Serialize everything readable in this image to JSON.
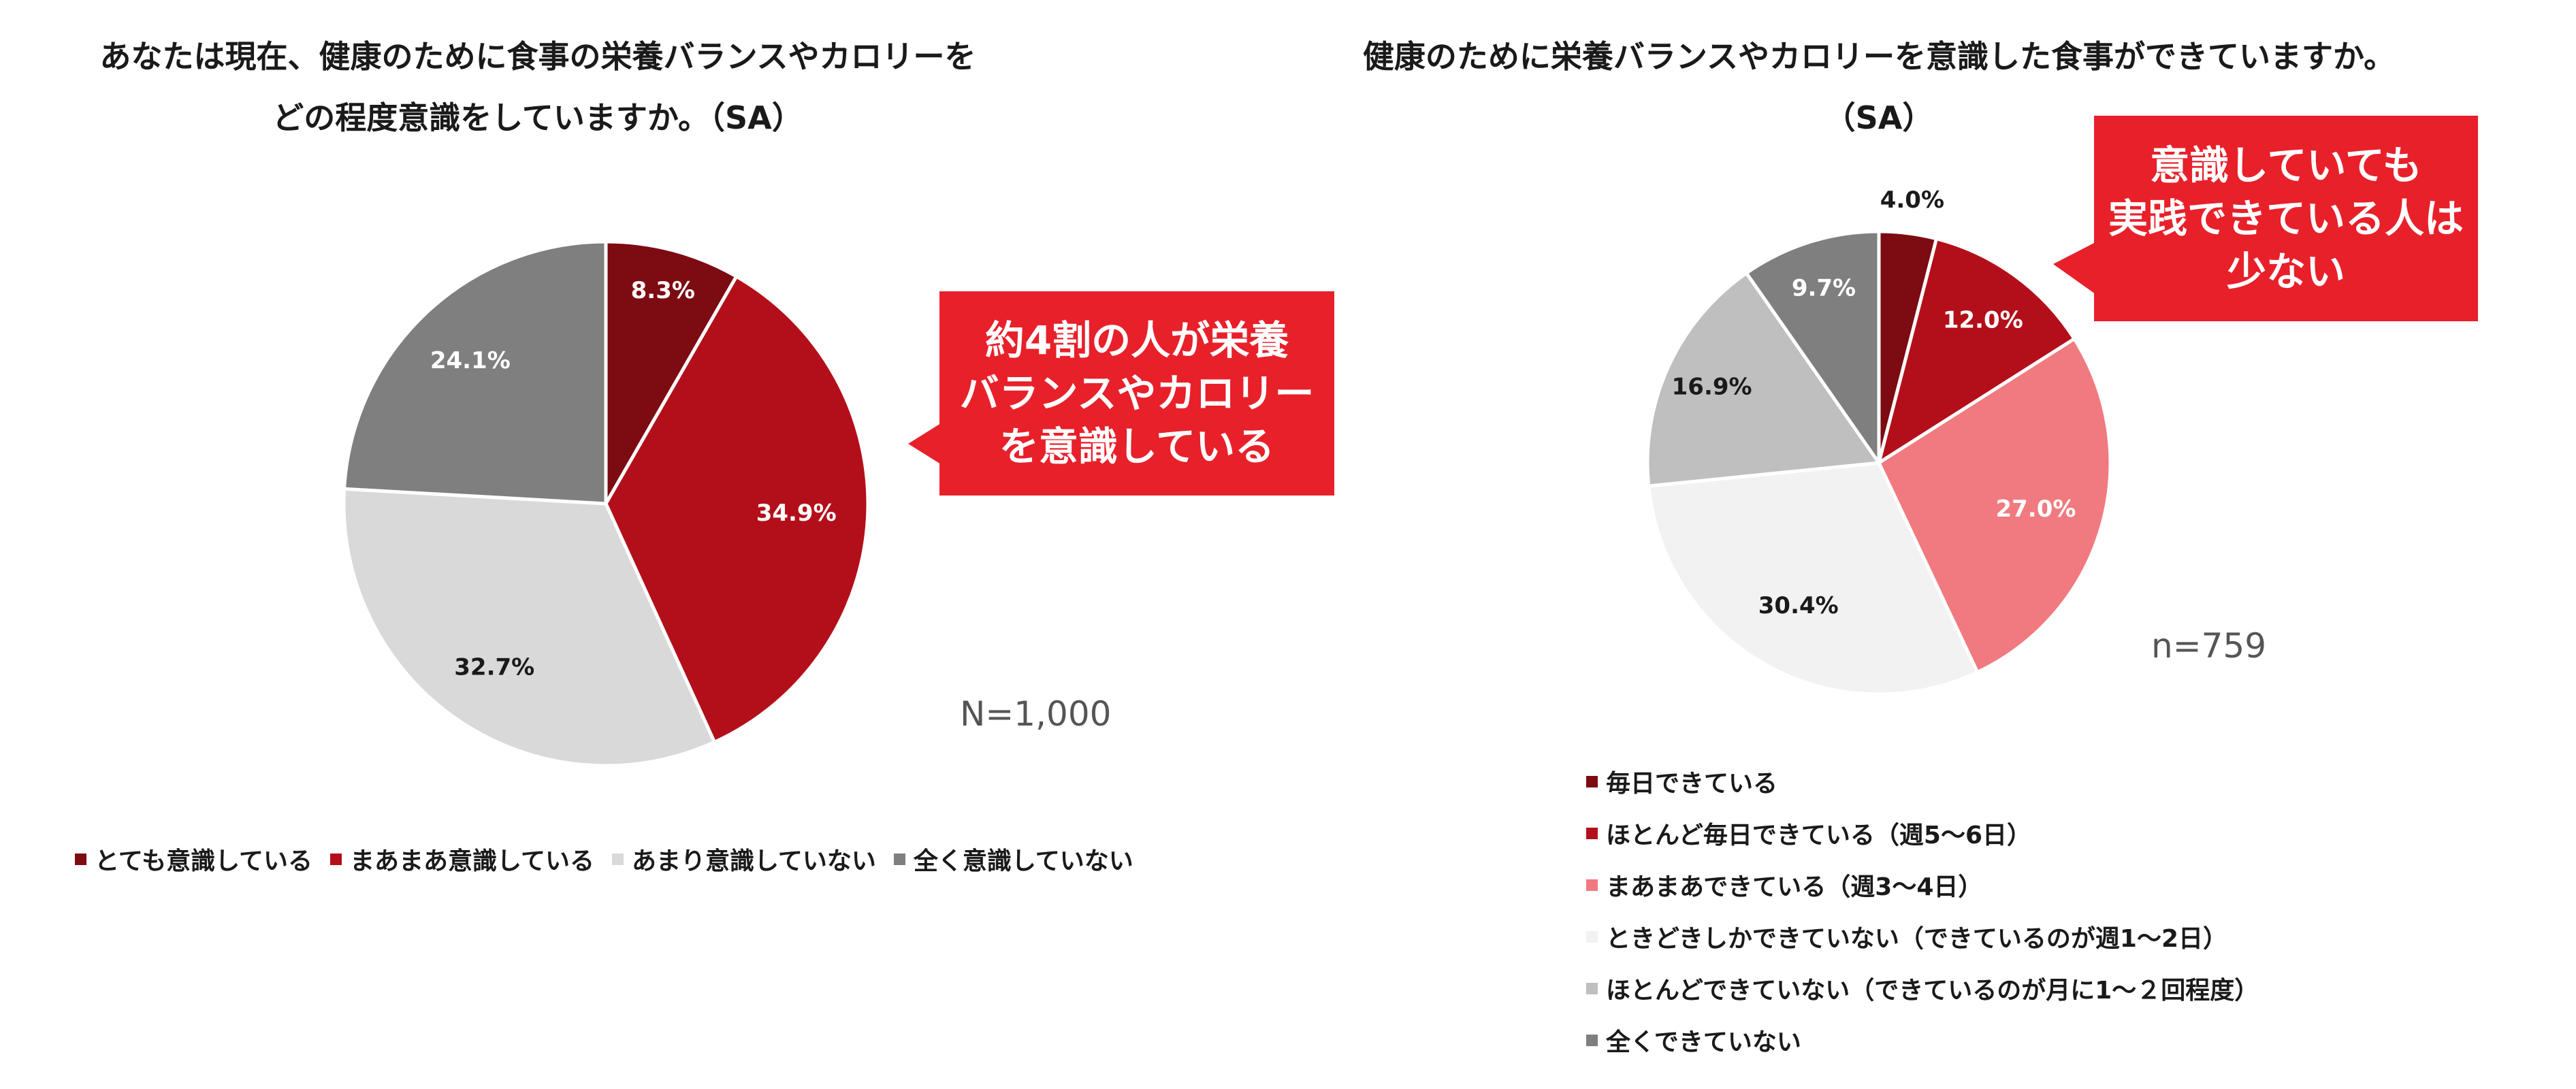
{
  "chart_data": [
    {
      "type": "pie",
      "title_lines": [
        "あなたは現在、健康のために食事の栄養バランスやカロリーを",
        "どの程度意識をしていますか。（SA）"
      ],
      "slices": [
        {
          "label": "とても意識している",
          "value": 8.3,
          "display": "8.3%",
          "color": "#7d0b12"
        },
        {
          "label": "まあまあ意識している",
          "value": 34.9,
          "display": "34.9%",
          "color": "#b30f1a"
        },
        {
          "label": "あまり意識していない",
          "value": 32.7,
          "display": "32.7%",
          "color": "#d9d9d9"
        },
        {
          "label": "全く意識していない",
          "value": 24.1,
          "display": "24.1%",
          "color": "#7f7f7f"
        }
      ],
      "sample_size": "N=1,000",
      "callout": "約4割の人が栄養\nバランスやカロリー\nを意識している",
      "legend_position": "bottom"
    },
    {
      "type": "pie",
      "title_lines": [
        "健康のために栄養バランスやカロリーを意識した食事ができていますか。",
        "（SA）"
      ],
      "slices": [
        {
          "label": "毎日できている",
          "value": 4.0,
          "display": "4.0%",
          "color": "#7d0b12"
        },
        {
          "label": "ほとんど毎日できている（週5～6日）",
          "value": 12.0,
          "display": "12.0%",
          "color": "#b30f1a"
        },
        {
          "label": "まあまあできている（週3～4日）",
          "value": 27.0,
          "display": "27.0%",
          "color": "#f07a7f"
        },
        {
          "label": "ときどきしかできていない（できているのが週1～2日）",
          "value": 30.4,
          "display": "30.4%",
          "color": "#f2f2f2"
        },
        {
          "label": "ほとんどできていない（できているのが月に1～２回程度）",
          "value": 16.9,
          "display": "16.9%",
          "color": "#bfbfbf"
        },
        {
          "label": "全くできていない",
          "value": 9.7,
          "display": "9.7%",
          "color": "#7f7f7f"
        }
      ],
      "sample_size": "n=759",
      "callout": "意識していても\n実践できている人は\n少ない",
      "legend_position": "bottom"
    }
  ]
}
